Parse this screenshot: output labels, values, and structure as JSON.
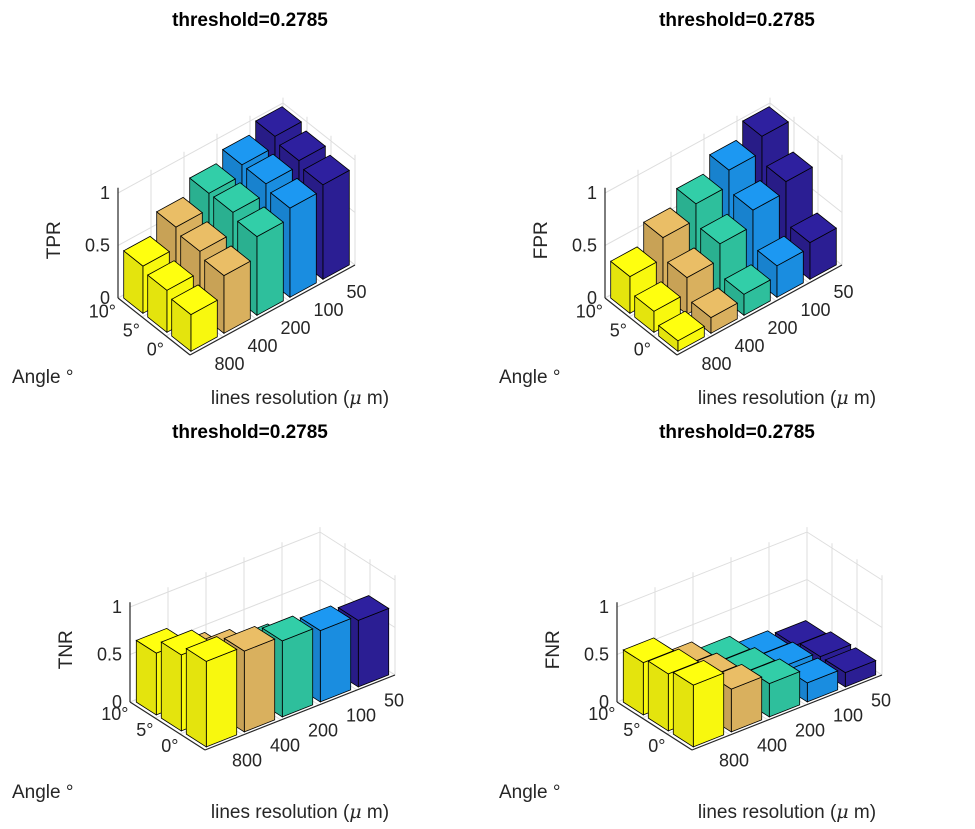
{
  "chart_data": [
    {
      "type": "bar3d",
      "title": "threshold=0.2785",
      "zlabel": "TPR",
      "xlabel": "lines resolution ($\\mu$ m)",
      "ylabel": "Angle °",
      "x_ticks": [
        "800",
        "400",
        "200",
        "100",
        "50"
      ],
      "y_ticks": [
        "0°",
        "5°",
        "10°"
      ],
      "z_ticks": [
        "0",
        "0.5",
        "1"
      ],
      "zlim": [
        0,
        1
      ],
      "values": [
        [
          0.35,
          0.55,
          0.75,
          0.85,
          0.9
        ],
        [
          0.4,
          0.6,
          0.8,
          0.9,
          0.95
        ],
        [
          0.45,
          0.65,
          0.8,
          0.9,
          1.0
        ]
      ]
    },
    {
      "type": "bar3d",
      "title": "threshold=0.2785",
      "zlabel": "FPR",
      "xlabel": "lines resolution ($\\mu$ m)",
      "ylabel": "Angle °",
      "x_ticks": [
        "800",
        "400",
        "200",
        "100",
        "50"
      ],
      "y_ticks": [
        "0°",
        "5°",
        "10°"
      ],
      "z_ticks": [
        "0",
        "0.5",
        "1"
      ],
      "zlim": [
        0,
        1
      ],
      "values": [
        [
          0.1,
          0.15,
          0.2,
          0.3,
          0.35
        ],
        [
          0.2,
          0.35,
          0.5,
          0.65,
          0.75
        ],
        [
          0.35,
          0.55,
          0.7,
          0.85,
          1.0
        ]
      ]
    },
    {
      "type": "bar3d",
      "title": "threshold=0.2785",
      "zlabel": "TNR",
      "xlabel": "lines resolution ($\\mu$ m)",
      "ylabel": "Angle °",
      "x_ticks": [
        "800",
        "400",
        "200",
        "100",
        "50"
      ],
      "y_ticks": [
        "0°",
        "5°",
        "10°"
      ],
      "z_ticks": [
        "0",
        "0.5",
        "1"
      ],
      "zlim": [
        0,
        1
      ],
      "values": [
        [
          0.9,
          0.85,
          0.8,
          0.75,
          0.7
        ],
        [
          0.8,
          0.65,
          0.55,
          0.45,
          0.3
        ],
        [
          0.65,
          0.45,
          0.3,
          0.2,
          0.1
        ]
      ]
    },
    {
      "type": "bar3d",
      "title": "threshold=0.2785",
      "zlabel": "FNR",
      "xlabel": "lines resolution ($\\mu$ m)",
      "ylabel": "Angle °",
      "x_ticks": [
        "800",
        "400",
        "200",
        "100",
        "50"
      ],
      "y_ticks": [
        "0°",
        "5°",
        "10°"
      ],
      "z_ticks": [
        "0",
        "0.5",
        "1"
      ],
      "zlim": [
        0,
        1
      ],
      "values": [
        [
          0.65,
          0.45,
          0.35,
          0.2,
          0.15
        ],
        [
          0.6,
          0.4,
          0.3,
          0.2,
          0.15
        ],
        [
          0.55,
          0.35,
          0.25,
          0.15,
          0.1
        ]
      ]
    }
  ],
  "colors": {
    "bars": [
      "#f8f80e",
      "#d9b05e",
      "#2ebf9c",
      "#1a8de0",
      "#2b1e93"
    ],
    "grid": "#dedede",
    "axis": "#262626"
  }
}
